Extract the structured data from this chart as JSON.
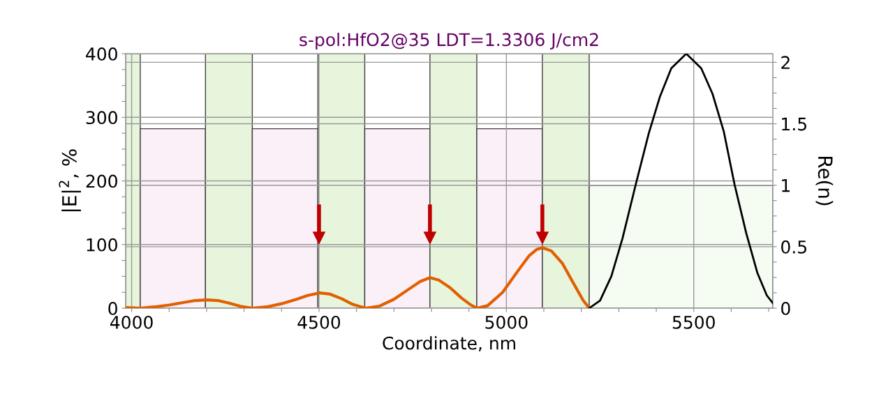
{
  "chart_data": {
    "type": "line",
    "title": "s-pol:HfO2@35 LDT=1.3306 J/cm2",
    "xlabel": "Coordinate, nm",
    "ylabel": "|E|$^{2}$, %",
    "y2label": "Re(n)",
    "xlim": [
      3984,
      5711
    ],
    "xticks": [
      4000,
      {
        "value": 4100,
        "label": null
      },
      {
        "value": 4200,
        "label": null
      },
      {
        "value": 4300,
        "label": null
      },
      {
        "value": 4400,
        "label": null
      },
      4500,
      {
        "value": 4600,
        "label": null
      },
      {
        "value": 4700,
        "label": null
      },
      {
        "value": 4800,
        "label": null
      },
      {
        "value": 4900,
        "label": null
      },
      5000,
      {
        "value": 5100,
        "label": null
      },
      {
        "value": 5200,
        "label": null
      },
      {
        "value": 5300,
        "label": null
      },
      {
        "value": 5400,
        "label": null
      },
      5500,
      {
        "value": 5600,
        "label": null
      },
      {
        "value": 5700,
        "label": null
      }
    ],
    "ylim": [
      0,
      400
    ],
    "yticks": [
      0,
      {
        "value": 25,
        "label": null
      },
      {
        "value": 50,
        "label": null
      },
      {
        "value": 75,
        "label": null
      },
      100,
      {
        "value": 125,
        "label": null
      },
      {
        "value": 150,
        "label": null
      },
      {
        "value": 175,
        "label": null
      },
      200,
      {
        "value": 225,
        "label": null
      },
      {
        "value": 250,
        "label": null
      },
      {
        "value": 275,
        "label": null
      },
      300,
      {
        "value": 325,
        "label": null
      },
      {
        "value": 350,
        "label": null
      },
      {
        "value": 375,
        "label": null
      },
      400
    ],
    "y2lim": [
      0,
      2.07
    ],
    "y2ticks": [
      0,
      {
        "value": 0.125,
        "label": null
      },
      {
        "value": 0.25,
        "label": null
      },
      {
        "value": 0.375,
        "label": null
      },
      0.5,
      {
        "value": 0.625,
        "label": null
      },
      {
        "value": 0.75,
        "label": null
      },
      {
        "value": 0.875,
        "label": null
      },
      1,
      {
        "value": 1.125,
        "label": null
      },
      {
        "value": 1.25,
        "label": null
      },
      {
        "value": 1.375,
        "label": null
      },
      1.5,
      {
        "value": 1.625,
        "label": null
      },
      {
        "value": 1.75,
        "label": null
      },
      {
        "value": 1.875,
        "label": null
      },
      2
    ],
    "grid": true,
    "series": [
      {
        "type": "histogram",
        "axis": "y2",
        "color": "#404040",
        "colors": [
          "#e6f5dc",
          "#fbeff8",
          "#e6f5dc",
          "#fbeff8",
          "#e6f5dc",
          "#fbeff8",
          "#e6f5dc",
          "#fbeff8",
          "#e6f5dc",
          "#f5fcf2"
        ],
        "bins": [
          3984,
          4023,
          4197,
          4322,
          4497,
          4622,
          4796,
          4921,
          5096,
          5221,
          5711
        ],
        "values": [
          2.07,
          1.46,
          2.07,
          1.46,
          2.07,
          1.46,
          2.07,
          1.46,
          2.07,
          1.0
        ]
      },
      {
        "color": "#e06000",
        "x": [
          3984,
          4023,
          4060,
          4100,
          4140,
          4170,
          4201,
          4230,
          4260,
          4290,
          4322,
          4360,
          4400,
          4440,
          4470,
          4502,
          4530,
          4560,
          4590,
          4624,
          4660,
          4700,
          4740,
          4770,
          4796,
          4820,
          4850,
          4880,
          4905,
          4922,
          4950,
          4990,
          5030,
          5060,
          5080,
          5096,
          5120,
          5150,
          5180,
          5205,
          5221
        ],
        "values": [
          1,
          0,
          2,
          5,
          9,
          12,
          13,
          12,
          8,
          3,
          0,
          2,
          7,
          14,
          20,
          24,
          22,
          15,
          6,
          0,
          3,
          14,
          30,
          42,
          48,
          44,
          32,
          16,
          5,
          0,
          4,
          25,
          58,
          82,
          92,
          95,
          90,
          70,
          38,
          12,
          0
        ]
      },
      {
        "color": "#000000",
        "x": [
          5221,
          5250,
          5280,
          5310,
          5345,
          5380,
          5410,
          5440,
          5480,
          5520,
          5550,
          5580,
          5609,
          5640,
          5670,
          5695,
          5711
        ],
        "values": [
          0,
          12,
          50,
          110,
          194,
          275,
          333,
          377,
          400,
          377,
          337,
          278,
          194,
          118,
          55,
          20,
          8
        ]
      },
      {
        "type": "scatter",
        "marker": "triangle",
        "color": "#c00000",
        "x": [
          4500,
          4796,
          5096
        ],
        "values": [
          110,
          110,
          110
        ],
        "errors": [
          [
            110,
            163
          ],
          [
            110,
            163
          ],
          [
            110,
            163
          ]
        ]
      }
    ]
  }
}
